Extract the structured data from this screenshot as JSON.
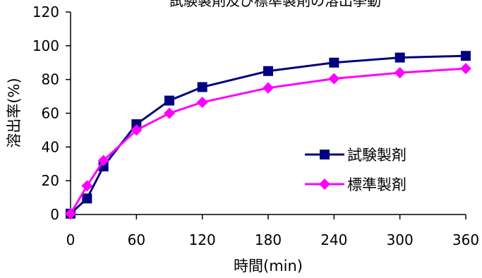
{
  "chart_data": {
    "type": "line",
    "title": "試験製剤及び標準製剤の溶出挙動",
    "xlabel": "時間(min)",
    "ylabel": "溶出率(%)",
    "x": [
      0,
      15,
      30,
      60,
      90,
      120,
      180,
      240,
      300,
      360
    ],
    "xticks": [
      0,
      60,
      120,
      180,
      240,
      300,
      360
    ],
    "xtick_labels": [
      "0",
      "60",
      "120",
      "180",
      "240",
      "300",
      "360"
    ],
    "xlim": [
      0,
      360
    ],
    "yticks": [
      0,
      20,
      40,
      60,
      80,
      100,
      120
    ],
    "ytick_labels": [
      "0",
      "20",
      "40",
      "60",
      "80",
      "100",
      "120"
    ],
    "ylim": [
      0,
      120
    ],
    "grid": false,
    "legend_position": "right",
    "series": [
      {
        "name": "試験製剤",
        "color": "#000080",
        "marker": "square",
        "values": [
          0.5,
          9.5,
          28.5,
          53.5,
          67.5,
          75.5,
          85,
          90,
          93,
          94
        ]
      },
      {
        "name": "標準製剤",
        "color": "#ff00ff",
        "marker": "diamond",
        "values": [
          0.5,
          17,
          32,
          50,
          60,
          66.5,
          75,
          80.5,
          84,
          86.5
        ]
      }
    ]
  }
}
